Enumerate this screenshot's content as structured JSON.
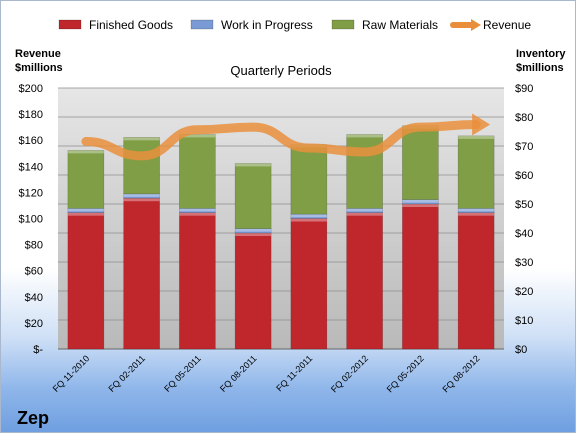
{
  "brand": "Zep",
  "chart_data": {
    "type": "bar",
    "title": "Quarterly Periods",
    "left_axis_title": [
      "Revenue",
      "$millions"
    ],
    "right_axis_title": [
      "Inventory",
      "$millions"
    ],
    "categories": [
      "FQ 11-2010",
      "FQ 02-2011",
      "FQ 05-2011",
      "FQ 08-2011",
      "FQ 11-2011",
      "FQ 02-2012",
      "FQ 05-2012",
      "FQ 08-2012"
    ],
    "left_ylim": [
      0,
      200
    ],
    "left_ticks": [
      "$-",
      "$20",
      "$40",
      "$60",
      "$80",
      "$100",
      "$120",
      "$140",
      "$160",
      "$180",
      "$200"
    ],
    "right_ylim": [
      0,
      90
    ],
    "right_ticks": [
      "$0",
      "$10",
      "$20",
      "$30",
      "$40",
      "$50",
      "$60",
      "$70",
      "$80",
      "$90"
    ],
    "grid": true,
    "legend_position": "top",
    "series": [
      {
        "name": "Finished Goods",
        "axis": "right",
        "kind": "stacked-bar",
        "color": "#c0272d",
        "values": [
          47,
          52,
          47,
          40,
          45,
          47,
          50,
          47
        ]
      },
      {
        "name": "Work in Progress",
        "axis": "right",
        "kind": "stacked-bar",
        "color": "#7a9ad6",
        "values": [
          1.5,
          1.5,
          1.5,
          1.5,
          1.5,
          1.5,
          1.5,
          1.5
        ]
      },
      {
        "name": "Raw Materials",
        "axis": "right",
        "kind": "stacked-bar",
        "color": "#7f9e45",
        "values": [
          20,
          19.5,
          25.5,
          22.5,
          24,
          25.5,
          25.5,
          25
        ]
      },
      {
        "name": "Revenue",
        "axis": "left",
        "kind": "line",
        "color": "#e98f3c",
        "values": [
          159,
          148,
          168,
          170,
          154,
          151,
          170,
          172
        ]
      }
    ]
  }
}
